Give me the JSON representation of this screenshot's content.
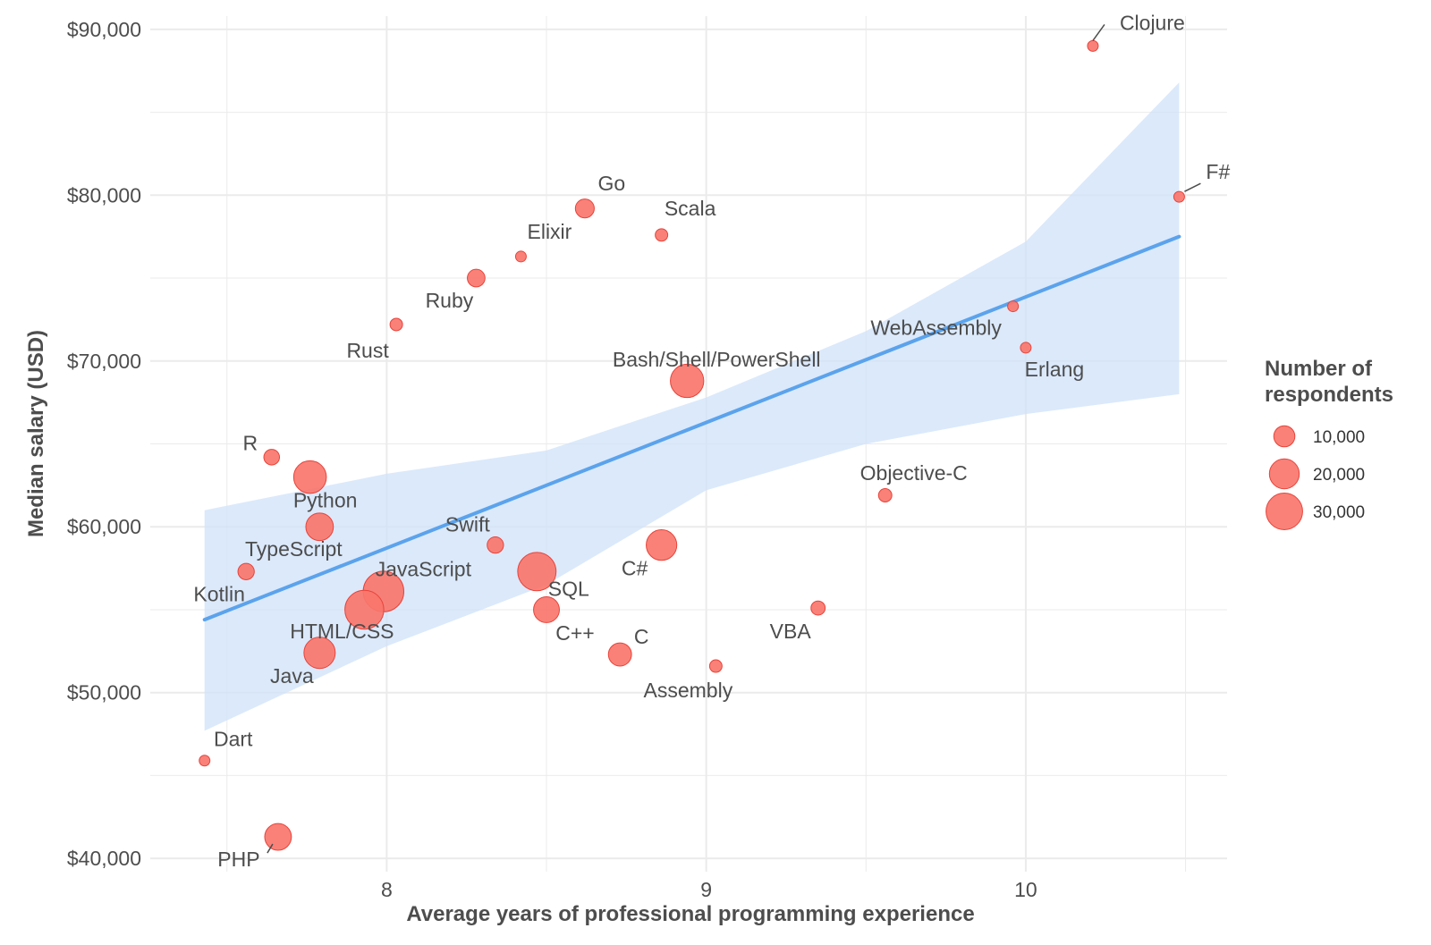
{
  "chart_data": {
    "type": "scatter",
    "xlabel": "Average years of professional programming experience",
    "ylabel": "Median salary (USD)",
    "xlim": [
      7.26,
      10.63
    ],
    "ylim": [
      39200,
      90800
    ],
    "x_ticks": [
      8,
      9,
      10
    ],
    "x_tick_labels": [
      "8",
      "9",
      "10"
    ],
    "y_ticks": [
      40000,
      50000,
      60000,
      70000,
      80000,
      90000
    ],
    "y_tick_labels": [
      "$40,000",
      "$50,000",
      "$60,000",
      "$70,000",
      "$80,000",
      "$90,000"
    ],
    "grid": true,
    "colors": {
      "point": "#f8766d",
      "point_stroke": "#e8433a",
      "trend_line": "#5ba3ec",
      "confidence_band": "#cfe2f9",
      "grid": "#ebebeb",
      "text": "#4d4d4d"
    },
    "trend": {
      "x": [
        7.43,
        10.48
      ],
      "y": [
        54400,
        77500
      ],
      "band": {
        "x": [
          7.43,
          8.0,
          8.5,
          9.0,
          9.5,
          10.0,
          10.48
        ],
        "upper": [
          61000,
          63200,
          64600,
          67800,
          71800,
          77200,
          86800
        ],
        "lower": [
          47700,
          52800,
          56500,
          62200,
          65000,
          66800,
          68000
        ]
      }
    },
    "legend": {
      "title_line1": "Number of",
      "title_line2": "respondents",
      "placement": "right",
      "entries": [
        {
          "label": "10,000",
          "value": 10000
        },
        {
          "label": "20,000",
          "value": 20000
        },
        {
          "label": "30,000",
          "value": 30000
        }
      ]
    },
    "points": [
      {
        "name": "Clojure",
        "x": 10.21,
        "y": 89000,
        "respondents": 500
      },
      {
        "name": "F#",
        "x": 10.48,
        "y": 79900,
        "respondents": 500
      },
      {
        "name": "Go",
        "x": 8.62,
        "y": 79200,
        "respondents": 8000
      },
      {
        "name": "Scala",
        "x": 8.86,
        "y": 77600,
        "respondents": 3500
      },
      {
        "name": "Elixir",
        "x": 8.42,
        "y": 76300,
        "respondents": 1500
      },
      {
        "name": "Ruby",
        "x": 8.28,
        "y": 75000,
        "respondents": 7000
      },
      {
        "name": "Rust",
        "x": 8.03,
        "y": 72200,
        "respondents": 3500
      },
      {
        "name": "WebAssembly",
        "x": 9.96,
        "y": 73300,
        "respondents": 1000
      },
      {
        "name": "Erlang",
        "x": 10.0,
        "y": 70800,
        "respondents": 500
      },
      {
        "name": "Bash/Shell/PowerShell",
        "x": 8.94,
        "y": 68800,
        "respondents": 25000
      },
      {
        "name": "R",
        "x": 7.64,
        "y": 64200,
        "respondents": 5500
      },
      {
        "name": "Python",
        "x": 7.76,
        "y": 63000,
        "respondents": 24000
      },
      {
        "name": "Objective-C",
        "x": 9.56,
        "y": 61900,
        "respondents": 4000
      },
      {
        "name": "TypeScript",
        "x": 7.79,
        "y": 60000,
        "respondents": 17000
      },
      {
        "name": "Swift",
        "x": 8.34,
        "y": 58900,
        "respondents": 6000
      },
      {
        "name": "C#",
        "x": 8.86,
        "y": 58900,
        "respondents": 21000
      },
      {
        "name": "JavaScript",
        "x": 8.47,
        "y": 57300,
        "respondents": 33000
      },
      {
        "name": "Kotlin",
        "x": 7.56,
        "y": 57300,
        "respondents": 6000
      },
      {
        "name": "SQL",
        "x": 7.99,
        "y": 56100,
        "respondents": 37000
      },
      {
        "name": "C++",
        "x": 8.5,
        "y": 55000,
        "respondents": 15000
      },
      {
        "name": "HTML/CSS",
        "x": 7.93,
        "y": 55000,
        "respondents": 34000
      },
      {
        "name": "VBA",
        "x": 9.35,
        "y": 55100,
        "respondents": 4500
      },
      {
        "name": "Java",
        "x": 7.79,
        "y": 52400,
        "respondents": 22000
      },
      {
        "name": "C",
        "x": 8.73,
        "y": 52300,
        "respondents": 12000
      },
      {
        "name": "Assembly",
        "x": 9.03,
        "y": 51600,
        "respondents": 3500
      },
      {
        "name": "Dart",
        "x": 7.43,
        "y": 45900,
        "respondents": 2000
      },
      {
        "name": "PHP",
        "x": 7.66,
        "y": 41300,
        "respondents": 16000
      }
    ]
  }
}
